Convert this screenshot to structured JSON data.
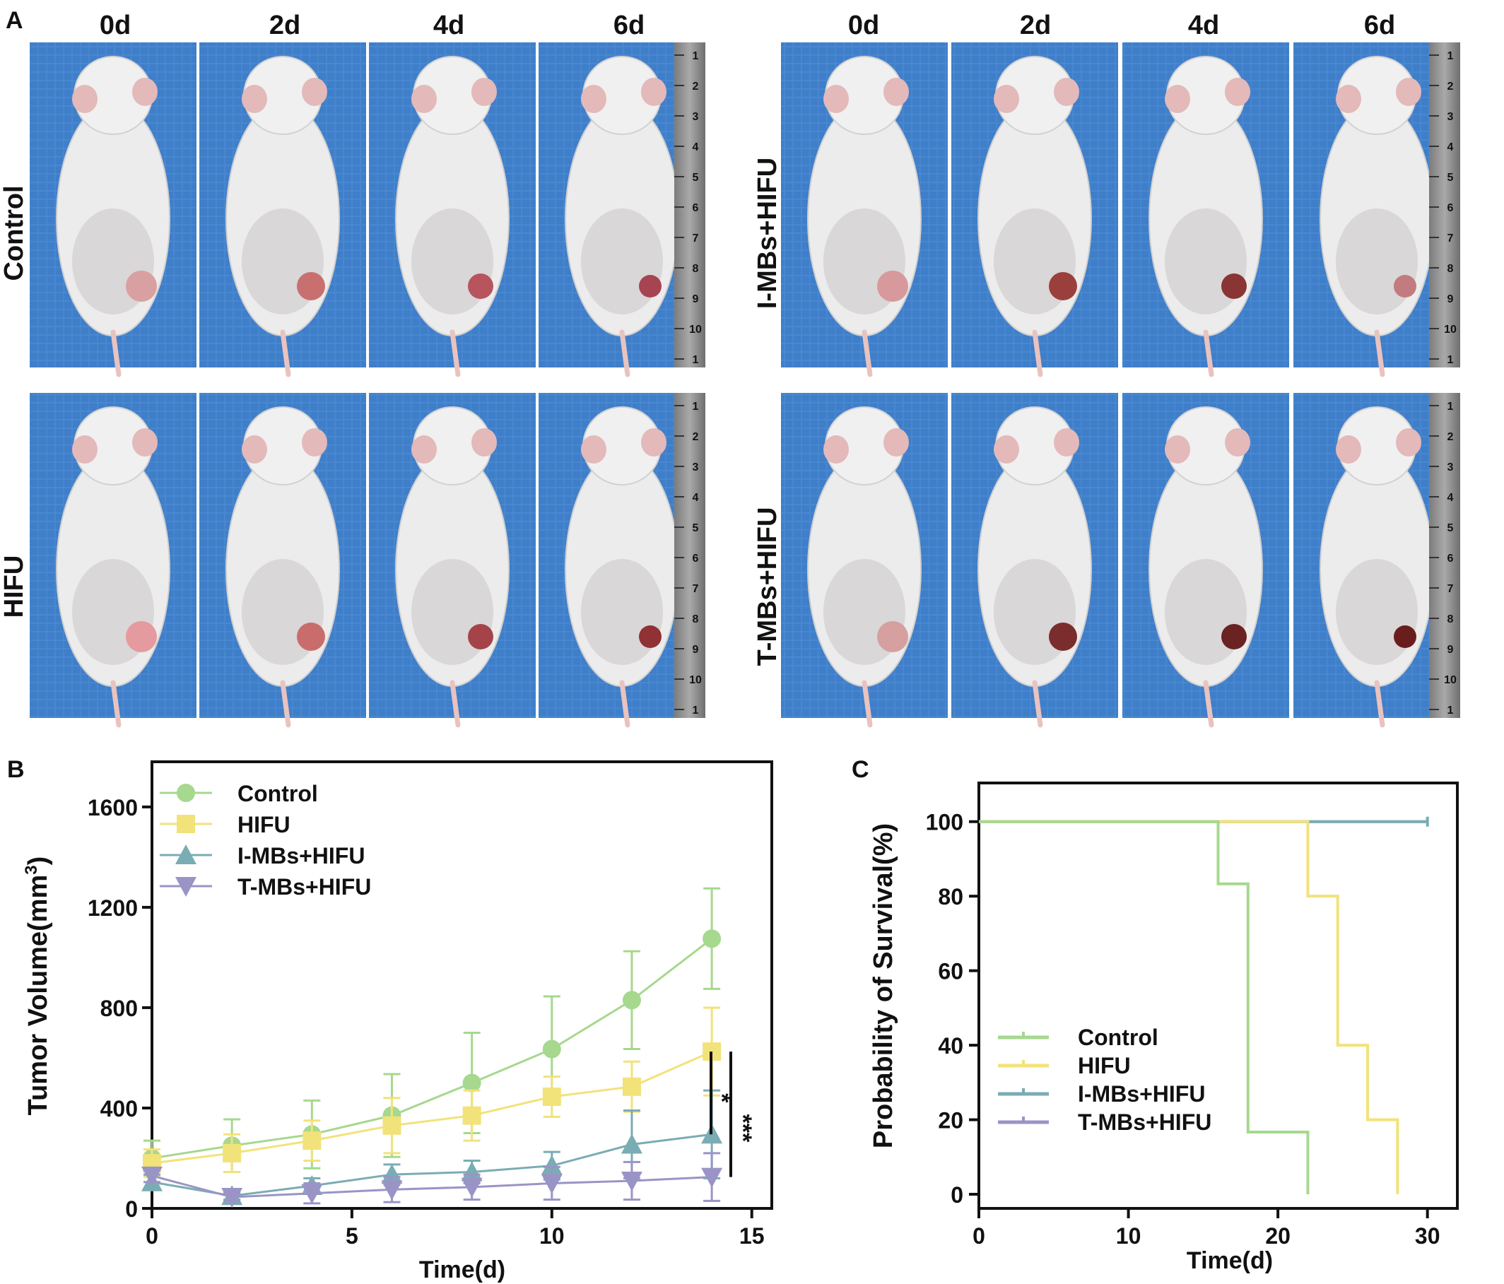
{
  "panel_a": {
    "label": "A",
    "days": [
      "0d",
      "2d",
      "4d",
      "6d"
    ],
    "groups_left": [
      "Control",
      "HIFU"
    ],
    "groups_right": [
      "I-MBs+HIFU",
      "T-MBs+HIFU"
    ],
    "ruler_ticks": [
      "1",
      "2",
      "3",
      "4",
      "5",
      "6",
      "7",
      "8",
      "9",
      "10",
      "1"
    ]
  },
  "panel_b_label": "B",
  "panel_c_label": "C",
  "chart_data": [
    {
      "type": "line",
      "xlabel": "Time(d)",
      "ylabel": "Tumor Volume(mm³)",
      "xlim": [
        0,
        15.5
      ],
      "ylim": [
        0,
        1780
      ],
      "xticks": [
        0,
        5,
        10,
        15
      ],
      "yticks": [
        0,
        400,
        800,
        1200,
        1600
      ],
      "grid": false,
      "legend_position": "top-left",
      "x": [
        0,
        2,
        4,
        6,
        8,
        10,
        12,
        14
      ],
      "series": [
        {
          "name": "Control",
          "marker": "circle",
          "color": "#a6d88e",
          "values": [
            200,
            250,
            295,
            370,
            500,
            635,
            830,
            1075
          ],
          "errors": [
            70,
            105,
            135,
            165,
            200,
            210,
            195,
            200
          ]
        },
        {
          "name": "HIFU",
          "marker": "square",
          "color": "#f2e27a",
          "values": [
            180,
            220,
            270,
            330,
            370,
            445,
            485,
            625
          ],
          "errors": [
            55,
            75,
            80,
            110,
            100,
            80,
            100,
            175
          ]
        },
        {
          "name": "I-MBs+HIFU",
          "marker": "triangle-up",
          "color": "#7aacb4",
          "values": [
            105,
            50,
            90,
            135,
            145,
            170,
            255,
            295
          ],
          "errors": [
            30,
            15,
            30,
            40,
            45,
            55,
            135,
            175
          ]
        },
        {
          "name": "T-MBs+HIFU",
          "marker": "triangle-down",
          "color": "#9a94c6",
          "values": [
            130,
            45,
            60,
            75,
            85,
            100,
            110,
            125
          ],
          "errors": [
            25,
            15,
            40,
            50,
            50,
            65,
            75,
            95
          ]
        }
      ],
      "annotations": [
        "*",
        "***"
      ]
    },
    {
      "type": "line",
      "xlabel": "Time(d)",
      "ylabel": "Probability of Survival(%)",
      "xlim": [
        0,
        32
      ],
      "ylim": [
        0,
        110
      ],
      "xticks": [
        0,
        10,
        20,
        30
      ],
      "yticks": [
        0,
        20,
        40,
        60,
        80,
        100
      ],
      "grid": false,
      "legend_position": "bottom-left",
      "series": [
        {
          "name": "Control",
          "color": "#a6d88e",
          "step": true,
          "points": [
            [
              0,
              100
            ],
            [
              16,
              100
            ],
            [
              16,
              83.3
            ],
            [
              18,
              83.3
            ],
            [
              18,
              16.7
            ],
            [
              22,
              16.7
            ],
            [
              22,
              0
            ]
          ]
        },
        {
          "name": "HIFU",
          "color": "#f2e27a",
          "step": true,
          "points": [
            [
              0,
              100
            ],
            [
              22,
              100
            ],
            [
              22,
              80
            ],
            [
              24,
              80
            ],
            [
              24,
              40
            ],
            [
              26,
              40
            ],
            [
              26,
              20
            ],
            [
              28,
              20
            ],
            [
              28,
              0
            ]
          ]
        },
        {
          "name": "I-MBs+HIFU",
          "color": "#7aacb4",
          "step": true,
          "points": [
            [
              0,
              100
            ],
            [
              30,
              100
            ]
          ]
        },
        {
          "name": "T-MBs+HIFU",
          "color": "#9a94c6",
          "step": true,
          "points": [
            [
              0,
              100
            ],
            [
              30,
              100
            ]
          ]
        }
      ]
    }
  ]
}
